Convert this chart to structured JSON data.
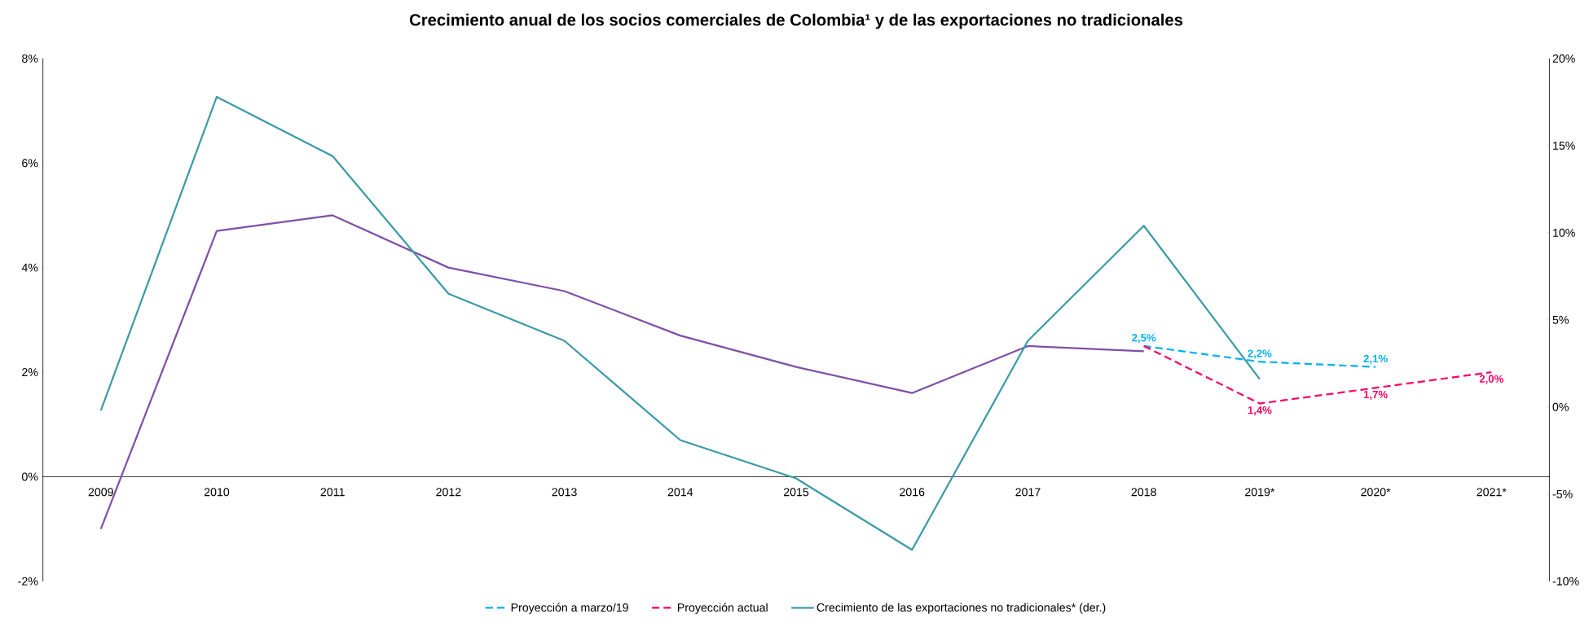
{
  "chart_data": {
    "type": "line",
    "title": "Crecimiento anual de los socios comerciales de Colombia¹ y de las exportaciones no tradicionales",
    "categories": [
      "2009",
      "2010",
      "2011",
      "2012",
      "2013",
      "2014",
      "2015",
      "2016",
      "2017",
      "2018",
      "2019*",
      "2020*",
      "2021*"
    ],
    "series": [
      {
        "color": "#7f4fa8",
        "line_style": "solid",
        "values": [
          -1.0,
          4.7,
          5.0,
          4.0,
          3.55,
          2.7,
          2.1,
          1.6,
          2.5,
          2.4,
          null,
          null,
          null
        ]
      },
      {
        "name": "Proyección a marzo/19",
        "color": "#00b0f0",
        "line_style": "dashed",
        "values": [
          null,
          null,
          null,
          null,
          null,
          null,
          null,
          null,
          null,
          2.5,
          2.2,
          2.1,
          null
        ],
        "value_labels": [
          null,
          null,
          null,
          null,
          null,
          null,
          null,
          null,
          null,
          "2,5%",
          "2,2%",
          "2,1%",
          null
        ]
      },
      {
        "name": "Proyección actual",
        "color": "#ff0066",
        "line_style": "dashed",
        "values": [
          null,
          null,
          null,
          null,
          null,
          null,
          null,
          null,
          null,
          2.5,
          1.4,
          1.7,
          2.0
        ],
        "value_labels": [
          null,
          null,
          null,
          null,
          null,
          null,
          null,
          null,
          null,
          null,
          "1,4%",
          "1,7%",
          "2,0%"
        ]
      },
      {
        "name": "Crecimiento de las exportaciones no tradicionales* (der.)",
        "color": "#3a9aa8",
        "line_style": "solid",
        "axis": "y2",
        "values": [
          -0.2,
          17.8,
          14.4,
          6.5,
          3.8,
          -1.9,
          -4.1,
          -8.2,
          3.8,
          10.4,
          1.6,
          null,
          null
        ]
      }
    ],
    "ylim": [
      -2,
      8
    ],
    "yticks": [
      {
        "value": -2,
        "label": "-2%"
      },
      {
        "value": 0,
        "label": "0%"
      },
      {
        "value": 2,
        "label": "2%"
      },
      {
        "value": 4,
        "label": "4%"
      },
      {
        "value": 6,
        "label": "6%"
      },
      {
        "value": 8,
        "label": "8%"
      }
    ],
    "y2lim": [
      -10,
      20
    ],
    "y2ticks": [
      {
        "value": -10,
        "label": "-10%"
      },
      {
        "value": -5,
        "label": "-5%"
      },
      {
        "value": 0,
        "label": "0%"
      },
      {
        "value": 5,
        "label": "5%"
      },
      {
        "value": 10,
        "label": "10%"
      },
      {
        "value": 15,
        "label": "15%"
      },
      {
        "value": 20,
        "label": "20%"
      }
    ],
    "legend": "bottom",
    "grid": false,
    "marker": "none"
  }
}
